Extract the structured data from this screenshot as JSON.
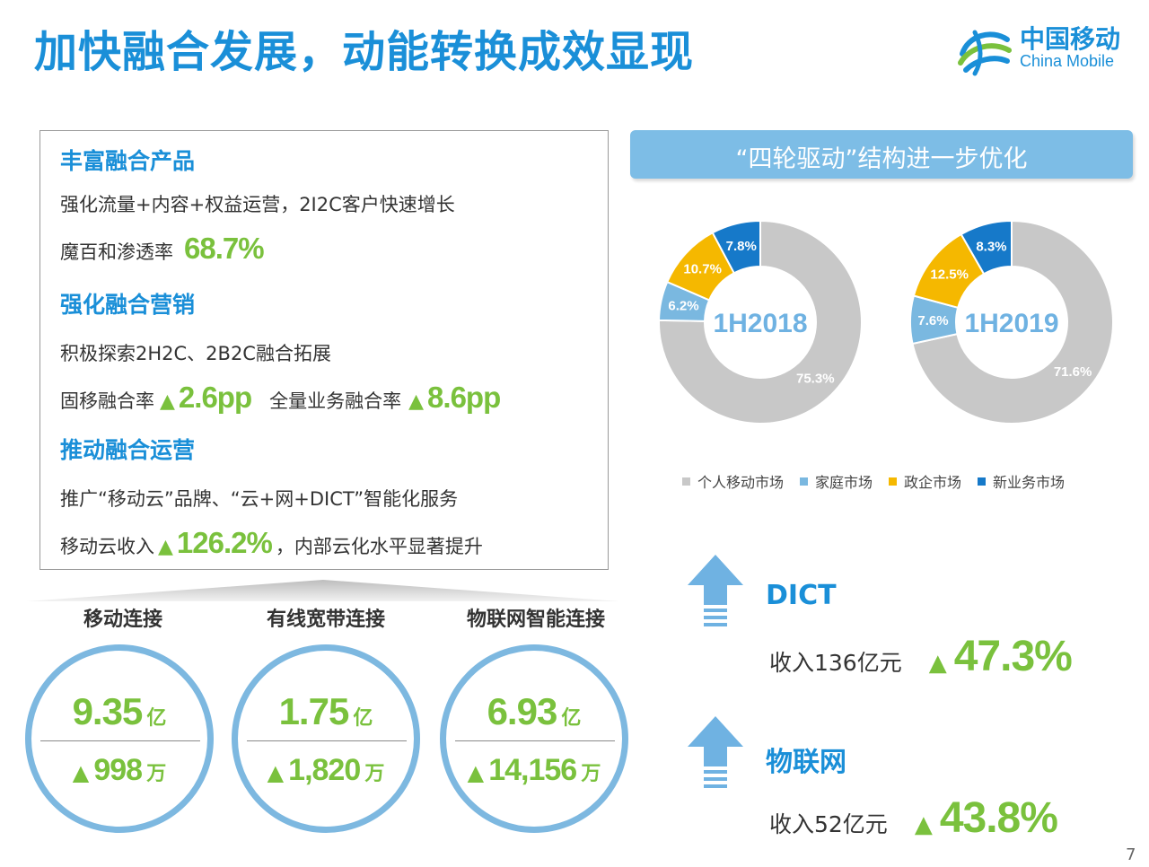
{
  "slide": {
    "title": "加快融合发展，动能转换成效显现",
    "page_number": "7"
  },
  "logo": {
    "cn": "中国移动",
    "en": "China Mobile",
    "color": "#1a8fd8"
  },
  "left_panel": {
    "section1": {
      "heading": "丰富融合产品",
      "line1": "强化流量+内容+权益运营，2I2C客户快速增长",
      "line2_label": "魔百和渗透率",
      "line2_value": "68.7%"
    },
    "section2": {
      "heading": "强化融合营销",
      "line1": "积极探索2H2C、2B2C融合拓展",
      "line2_label_a": "固移融合率",
      "line2_value_a": "2.6pp",
      "line2_label_b": "全量业务融合率",
      "line2_value_b": "8.6pp"
    },
    "section3": {
      "heading": "推动融合运营",
      "line1": "推广“移动云”品牌、“云+网+DICT”智能化服务",
      "line2_label": "移动云收入",
      "line2_value": "126.2%",
      "line2_suffix": "，内部云化水平显著提升"
    },
    "up_glyph": "▲"
  },
  "connections": [
    {
      "label": "移动连接",
      "total": "9.35",
      "total_unit": "亿",
      "delta": "998",
      "delta_unit": "万"
    },
    {
      "label": "有线宽带连接",
      "total": "1.75",
      "total_unit": "亿",
      "delta": "1,820",
      "delta_unit": "万"
    },
    {
      "label": "物联网智能连接",
      "total": "6.93",
      "total_unit": "亿",
      "delta": "14,156",
      "delta_unit": "万"
    }
  ],
  "right_panel": {
    "banner": "“四轮驱动”结构进一步优化",
    "dict": {
      "title": "DICT",
      "revenue": "收入136亿元",
      "growth": "47.3%"
    },
    "iot": {
      "title": "物联网",
      "revenue": "收入52亿元",
      "growth": "43.8%"
    }
  },
  "chart_data": {
    "type": "pie",
    "legend": [
      "个人移动市场",
      "家庭市场",
      "政企市场",
      "新业务市场"
    ],
    "colors": [
      "#c8c8c8",
      "#7ab8e0",
      "#f5b800",
      "#1679c9"
    ],
    "charts": [
      {
        "center_label": "1H2018",
        "values": [
          75.3,
          6.2,
          10.7,
          7.8
        ],
        "labels": [
          "75.3%",
          "6.2%",
          "10.7%",
          "7.8%"
        ]
      },
      {
        "center_label": "1H2019",
        "values": [
          71.6,
          7.6,
          12.5,
          8.3
        ],
        "labels": [
          "71.6%",
          "7.6%",
          "12.5%",
          "8.3%"
        ]
      }
    ]
  }
}
